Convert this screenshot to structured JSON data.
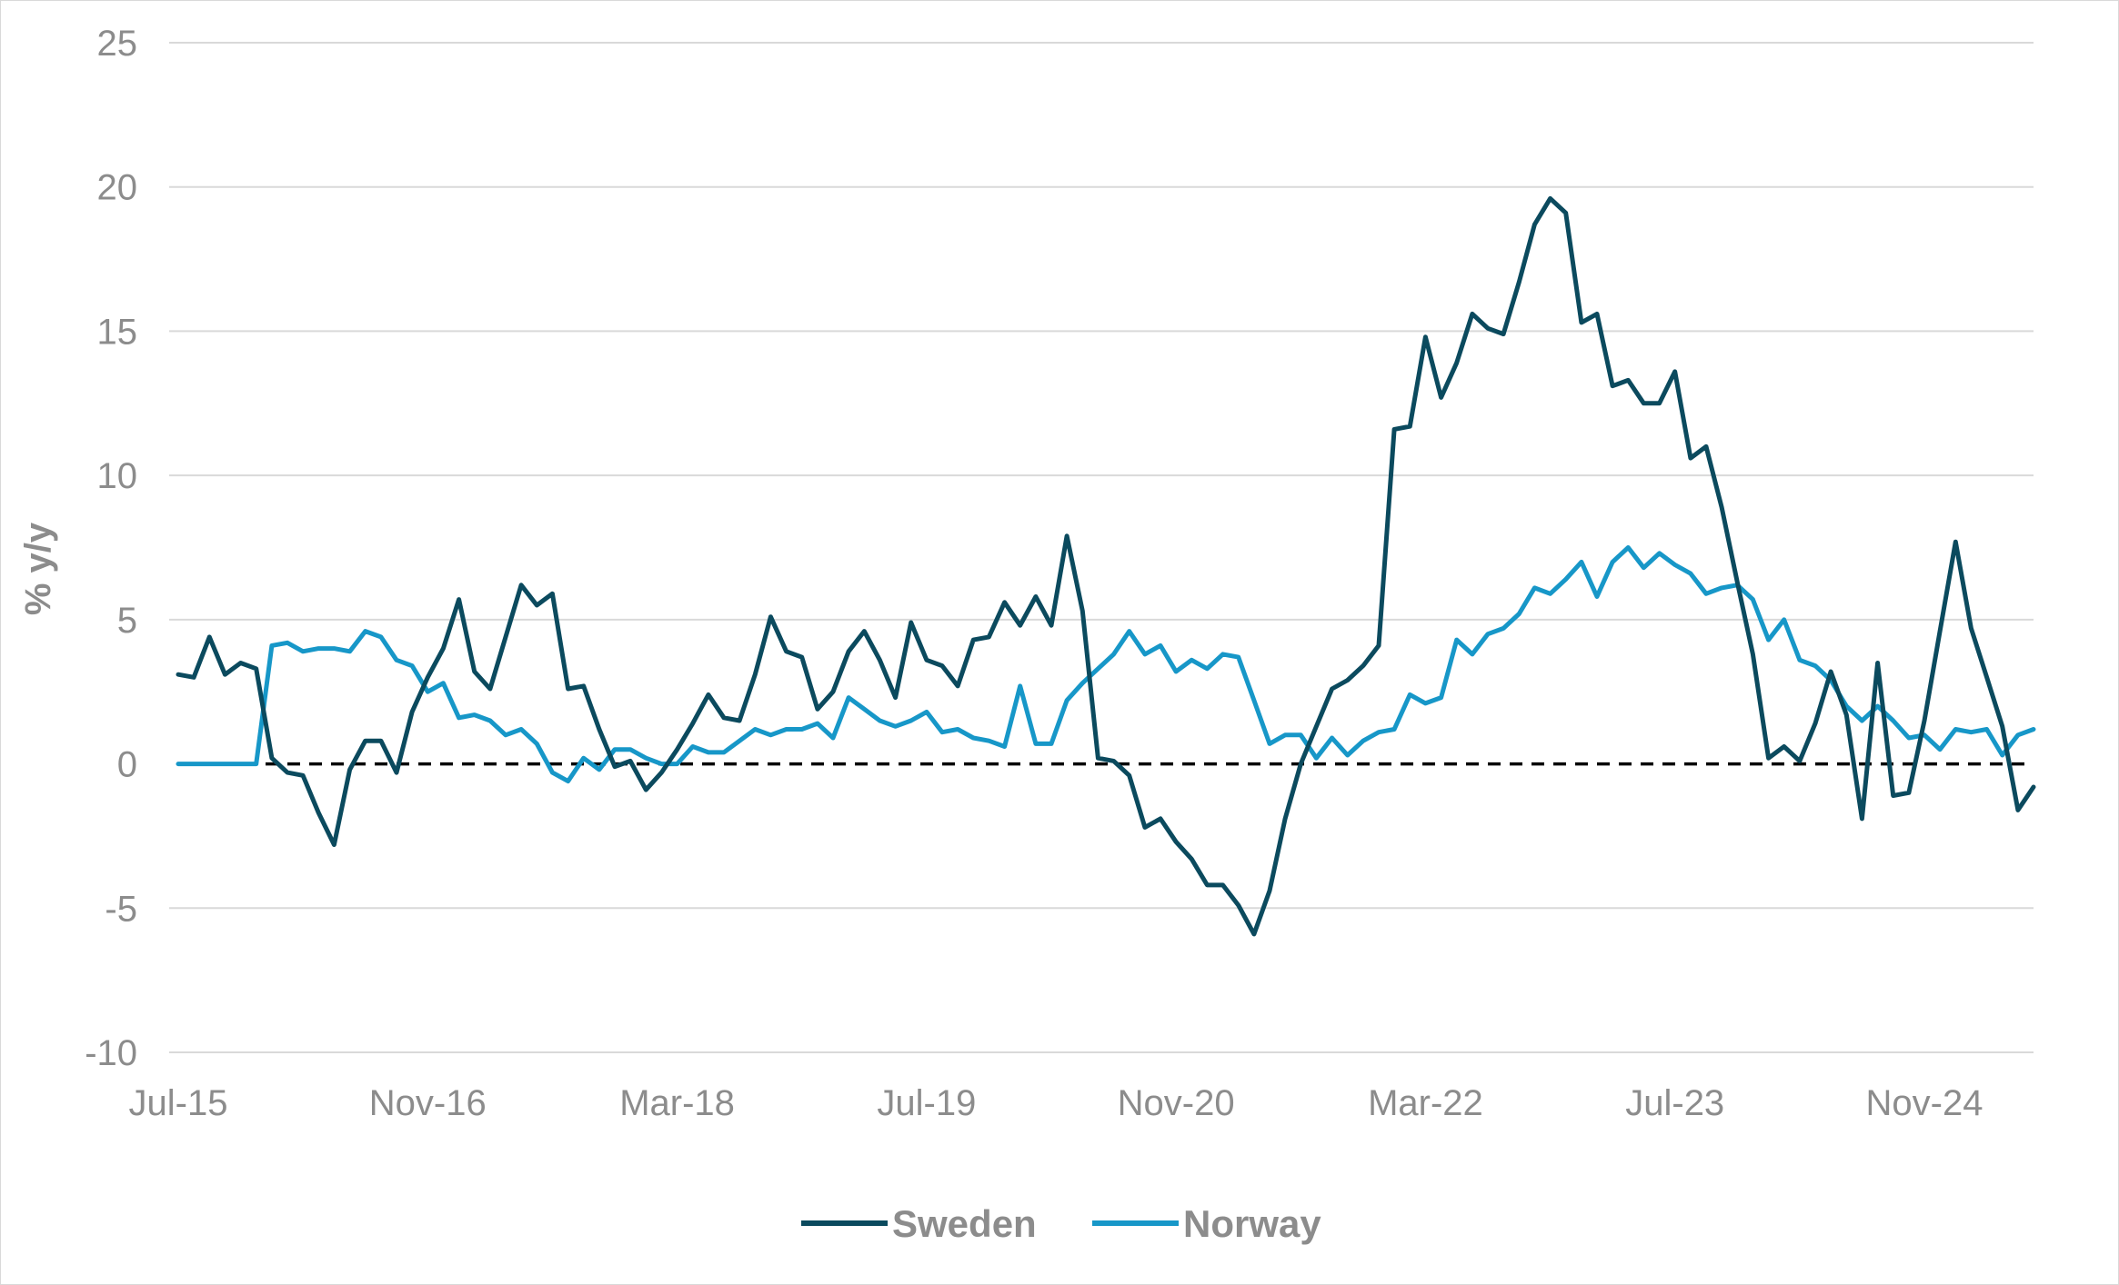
{
  "chart_data": {
    "type": "line",
    "title": "",
    "xlabel": "",
    "ylabel": "% y/y",
    "ylim": [
      -10,
      25
    ],
    "yticks": [
      -10,
      -5,
      0,
      5,
      10,
      15,
      20,
      25
    ],
    "xtick_labels": [
      "Jul-15",
      "Nov-16",
      "Mar-18",
      "Jul-19",
      "Nov-20",
      "Mar-22",
      "Jul-23",
      "Nov-24"
    ],
    "x_start": "Jul-15",
    "x_end": "May-25",
    "grid": "horizontal",
    "zero_line": "dashed",
    "legend": "bottom",
    "series": [
      {
        "name": "Sweden",
        "color": "#0b4a5e",
        "values": [
          3.1,
          3.0,
          4.4,
          3.1,
          3.5,
          3.3,
          0.2,
          -0.3,
          -0.4,
          -1.7,
          -2.8,
          -0.2,
          0.8,
          0.8,
          -0.3,
          1.8,
          3.0,
          4.0,
          5.7,
          3.2,
          2.6,
          4.4,
          6.2,
          5.5,
          5.9,
          2.6,
          2.7,
          1.2,
          -0.1,
          0.1,
          -0.9,
          -0.3,
          0.5,
          1.4,
          2.4,
          1.6,
          1.5,
          3.1,
          5.1,
          3.9,
          3.7,
          1.9,
          2.5,
          3.9,
          4.6,
          3.6,
          2.3,
          4.9,
          3.6,
          3.4,
          2.7,
          4.3,
          4.4,
          5.6,
          4.8,
          5.8,
          4.8,
          7.9,
          5.3,
          0.2,
          0.1,
          -0.4,
          -2.2,
          -1.9,
          -2.7,
          -3.3,
          -4.2,
          -4.2,
          -4.9,
          -5.9,
          -4.4,
          -1.9,
          0.0,
          1.3,
          2.6,
          2.9,
          3.4,
          4.1,
          11.6,
          11.7,
          14.8,
          12.7,
          13.9,
          15.6,
          15.1,
          14.9,
          16.7,
          18.7,
          19.6,
          19.1,
          15.3,
          15.6,
          13.1,
          13.3,
          12.5,
          12.5,
          13.6,
          10.6,
          11.0,
          8.9,
          6.3,
          3.8,
          0.2,
          0.6,
          0.1,
          1.4,
          3.2,
          1.7,
          -1.9,
          3.5,
          -1.1,
          -1.0,
          1.5,
          4.6,
          7.7,
          4.7,
          3.0,
          1.3,
          -1.6,
          -0.8
        ]
      },
      {
        "name": "Norway",
        "color": "#1797c8",
        "values": [
          0.0,
          0.0,
          0.0,
          0.0,
          0.0,
          0.0,
          4.1,
          4.2,
          3.9,
          4.0,
          4.0,
          3.9,
          4.6,
          4.4,
          3.6,
          3.4,
          2.5,
          2.8,
          1.6,
          1.7,
          1.5,
          1.0,
          1.2,
          0.7,
          -0.3,
          -0.6,
          0.2,
          -0.2,
          0.5,
          0.5,
          0.2,
          0.0,
          0.0,
          0.6,
          0.4,
          0.4,
          0.8,
          1.2,
          1.0,
          1.2,
          1.2,
          1.4,
          0.9,
          2.3,
          1.9,
          1.5,
          1.3,
          1.5,
          1.8,
          1.1,
          1.2,
          0.9,
          0.8,
          0.6,
          2.7,
          0.7,
          0.7,
          2.2,
          2.8,
          3.3,
          3.8,
          4.6,
          3.8,
          4.1,
          3.2,
          3.6,
          3.3,
          3.8,
          3.7,
          2.2,
          0.7,
          1.0,
          1.0,
          0.2,
          0.9,
          0.3,
          0.8,
          1.1,
          1.2,
          2.4,
          2.1,
          2.3,
          4.3,
          3.8,
          4.5,
          4.7,
          5.2,
          6.1,
          5.9,
          6.4,
          7.0,
          5.8,
          7.0,
          7.5,
          6.8,
          7.3,
          6.9,
          6.6,
          5.9,
          6.1,
          6.2,
          5.7,
          4.3,
          5.0,
          3.6,
          3.4,
          2.9,
          2.0,
          1.5,
          2.0,
          1.5,
          0.9,
          1.0,
          0.5,
          1.2,
          1.1,
          1.2,
          0.3,
          1.0,
          1.2
        ]
      }
    ]
  }
}
